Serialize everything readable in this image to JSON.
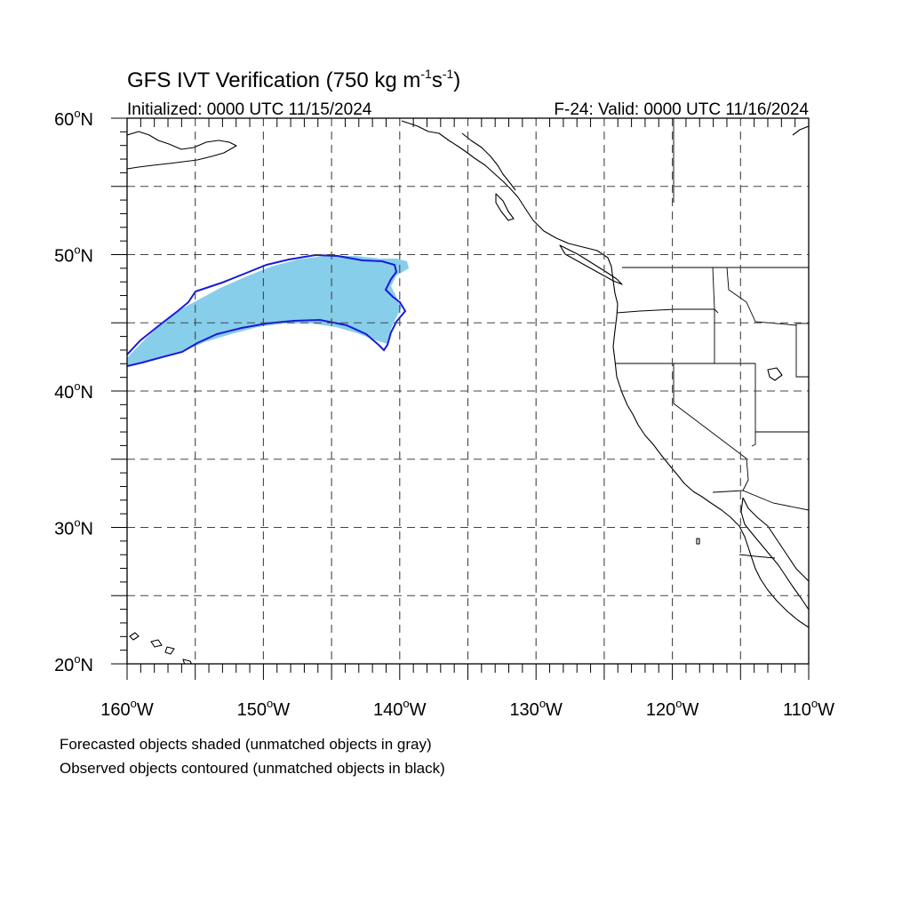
{
  "title": {
    "main": "GFS IVT Verification (750 kg m",
    "sup1": "-1",
    "mid": "s",
    "sup2": "-1",
    "close": ")"
  },
  "subtitle": {
    "left": "Initialized: 0000 UTC 11/15/2024",
    "right": "F-24: Valid: 0000 UTC 11/16/2024"
  },
  "axes": {
    "lat_labels": [
      {
        "value": 60,
        "deg": "60",
        "hem": "N"
      },
      {
        "value": 50,
        "deg": "50",
        "hem": "N"
      },
      {
        "value": 40,
        "deg": "40",
        "hem": "N"
      },
      {
        "value": 30,
        "deg": "30",
        "hem": "N"
      },
      {
        "value": 20,
        "deg": "20",
        "hem": "N"
      }
    ],
    "lon_labels": [
      {
        "value": -160,
        "deg": "160",
        "hem": "W"
      },
      {
        "value": -150,
        "deg": "150",
        "hem": "W"
      },
      {
        "value": -140,
        "deg": "140",
        "hem": "W"
      },
      {
        "value": -130,
        "deg": "130",
        "hem": "W"
      },
      {
        "value": -120,
        "deg": "120",
        "hem": "W"
      },
      {
        "value": -110,
        "deg": "110",
        "hem": "W"
      }
    ],
    "lon_range": [
      -160,
      -110
    ],
    "lat_range": [
      20,
      60
    ],
    "grid_spacing_deg": 5
  },
  "footer": {
    "line1": "Forecasted objects shaded (unmatched objects in gray)",
    "line2": "Observed objects contoured (unmatched objects in black)"
  },
  "objects": {
    "forecast_color": "#87ceeb",
    "observed_color": "#1a1adc"
  }
}
